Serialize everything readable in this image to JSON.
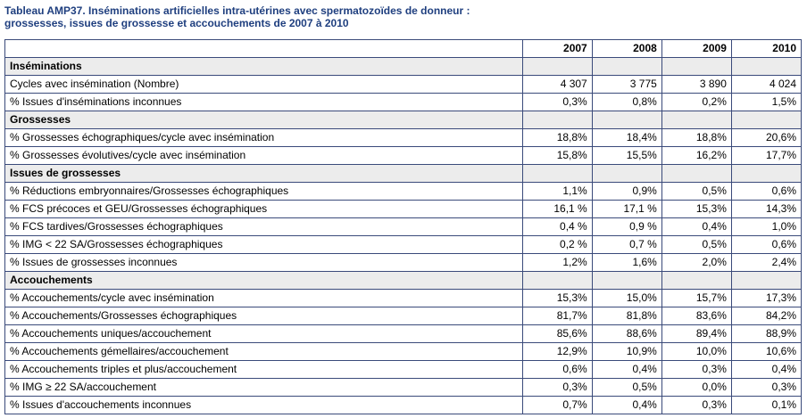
{
  "caption": {
    "line1": "Tableau AMP37. Inséminations artificielles intra-utérines avec spermatozoïdes de donneur :",
    "line2": "grossesses, issues de grossesse et accouchements de 2007 à 2010"
  },
  "table": {
    "years": [
      "2007",
      "2008",
      "2009",
      "2010"
    ],
    "sections": [
      {
        "title": "Inséminations",
        "rows": [
          {
            "label": "Cycles avec insémination (Nombre)",
            "values": [
              "4 307",
              "3 775",
              "3 890",
              "4 024"
            ]
          },
          {
            "label": "% Issues d'inséminations inconnues",
            "values": [
              "0,3%",
              "0,8%",
              "0,2%",
              "1,5%"
            ]
          }
        ]
      },
      {
        "title": "Grossesses",
        "rows": [
          {
            "label": "% Grossesses échographiques/cycle avec insémination",
            "values": [
              "18,8%",
              "18,4%",
              "18,8%",
              "20,6%"
            ]
          },
          {
            "label": "% Grossesses évolutives/cycle avec insémination",
            "values": [
              "15,8%",
              "15,5%",
              "16,2%",
              "17,7%"
            ]
          }
        ]
      },
      {
        "title": "Issues de grossesses",
        "rows": [
          {
            "label": "% Réductions embryonnaires/Grossesses échographiques",
            "values": [
              "1,1%",
              "0,9%",
              "0,5%",
              "0,6%"
            ]
          },
          {
            "label": "% FCS précoces et GEU/Grossesses échographiques",
            "values": [
              "16,1 %",
              "17,1 %",
              "15,3%",
              "14,3%"
            ]
          },
          {
            "label": "% FCS tardives/Grossesses échographiques",
            "values": [
              "0,4 %",
              "0,9 %",
              "0,4%",
              "1,0%"
            ]
          },
          {
            "label": "% IMG < 22 SA/Grossesses échographiques",
            "values": [
              "0,2 %",
              "0,7 %",
              "0,5%",
              "0,6%"
            ]
          },
          {
            "label": "% Issues de grossesses inconnues",
            "values": [
              "1,2%",
              "1,6%",
              "2,0%",
              "2,4%"
            ]
          }
        ]
      },
      {
        "title": "Accouchements",
        "rows": [
          {
            "label": "% Accouchements/cycle avec insémination",
            "values": [
              "15,3%",
              "15,0%",
              "15,7%",
              "17,3%"
            ]
          },
          {
            "label": "% Accouchements/Grossesses échographiques",
            "values": [
              "81,7%",
              "81,8%",
              "83,6%",
              "84,2%"
            ]
          },
          {
            "label": "% Accouchements uniques/accouchement",
            "values": [
              "85,6%",
              "88,6%",
              "89,4%",
              "88,9%"
            ]
          },
          {
            "label": "% Accouchements gémellaires/accouchement",
            "values": [
              "12,9%",
              "10,9%",
              "10,0%",
              "10,6%"
            ]
          },
          {
            "label": "% Accouchements triples et plus/accouchement",
            "values": [
              "0,6%",
              "0,4%",
              "0,3%",
              "0,4%"
            ]
          },
          {
            "label": "% IMG ≥ 22 SA/accouchement",
            "values": [
              "0,3%",
              "0,5%",
              "0,0%",
              "0,3%"
            ]
          },
          {
            "label": "% Issues d'accouchements inconnues",
            "values": [
              "0,7%",
              "0,4%",
              "0,3%",
              "0,1%"
            ]
          }
        ]
      }
    ]
  }
}
